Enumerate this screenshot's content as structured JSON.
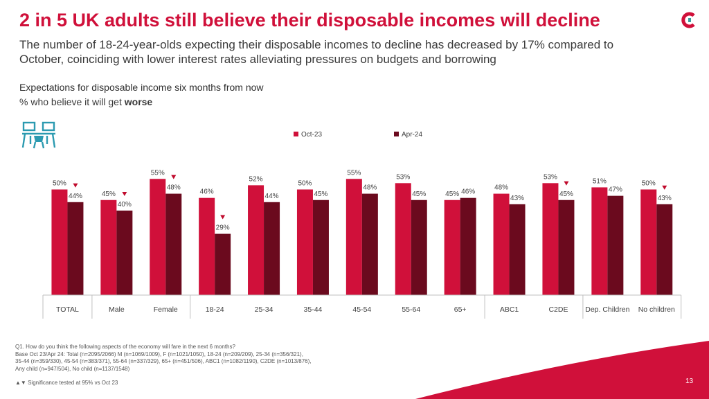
{
  "title": "2 in 5 UK adults still believe their disposable incomes will decline",
  "subtitle": "The number of 18-24-year-olds expecting their disposable incomes to decline has decreased by 17% compared to October, coinciding with lower interest rates alleviating pressures on budgets and borrowing",
  "chart_title": "Expectations for disposable income six months from now",
  "chart_subtitle_prefix": "% who believe it will get ",
  "chart_subtitle_bold": "worse",
  "footnote_lines": [
    "Q1. How do you think the following aspects of the economy will fare in the next 6 months?",
    "Base Oct 23/Apr 24: Total (n=2095/2066) M (n=1069/1009), F (n=1021/1050), 18-24 (n=209/209), 25-34 (n=356/321),",
    "35-44 (n=359/330), 45-54 (n=383/371), 55-64 (n=337/329), 65+ (n=451/506), ABC1 (n=1082/1190), C2DE (n=1013/876),",
    "Any child (n=947/504), No child (n=1137/1548)"
  ],
  "significance_glyphs": "▲▼",
  "significance_note": "Significance tested at 95% vs Oct 23",
  "page_number": "13",
  "icons": {
    "logo": "brand-logo-icon",
    "desk": "people-at-desk-icon",
    "sig_down": "down-triangle-icon"
  },
  "colors": {
    "brand_red": "#d0103a",
    "oct23": "#d0103a",
    "apr24": "#6b0a1e",
    "sig_down": "#c00a2c",
    "sig_up": "#2e8b2e"
  },
  "chart_data": {
    "type": "bar",
    "categories": [
      "TOTAL",
      "Male",
      "Female",
      "18-24",
      "25-34",
      "35-44",
      "45-54",
      "55-64",
      "65+",
      "ABC1",
      "C2DE",
      "Dep. Children",
      "No children"
    ],
    "series": [
      {
        "name": "Oct-23",
        "values": [
          50,
          45,
          55,
          46,
          52,
          50,
          55,
          53,
          45,
          48,
          53,
          51,
          50
        ]
      },
      {
        "name": "Apr-24",
        "values": [
          44,
          40,
          48,
          29,
          44,
          45,
          48,
          45,
          46,
          43,
          45,
          47,
          43
        ]
      }
    ],
    "value_suffix": "%",
    "significant_decrease": [
      true,
      true,
      true,
      true,
      false,
      false,
      false,
      false,
      false,
      false,
      true,
      false,
      true
    ],
    "category_groups": [
      [
        0
      ],
      [
        1,
        2
      ],
      [
        3,
        4,
        5,
        6,
        7,
        8
      ],
      [
        9,
        10
      ],
      [
        11,
        12
      ]
    ],
    "legend_position": "top",
    "ylim": [
      0,
      60
    ],
    "grid": false
  }
}
